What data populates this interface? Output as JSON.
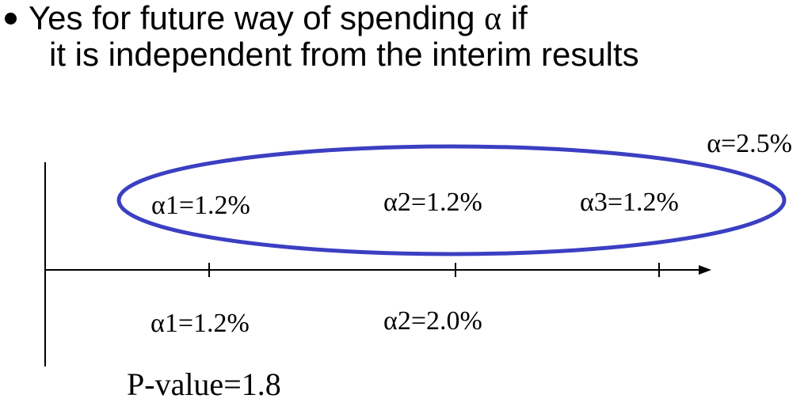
{
  "bullet": {
    "line1_before": "Yes for future way of spending ",
    "alpha_symbol": "α",
    "line1_after": " if",
    "line2": "it is independent from the interim results"
  },
  "diagram": {
    "total_alpha": "α=2.5%",
    "planned": {
      "a1": "α1=1.2%",
      "a2": "α2=1.2%",
      "a3": "α3=1.2%"
    },
    "actual": {
      "a1": "α1=1.2%",
      "a2": "α2=2.0%"
    },
    "pvalue": "P-value=1.8",
    "ellipse_color": "#3b3fc2"
  }
}
